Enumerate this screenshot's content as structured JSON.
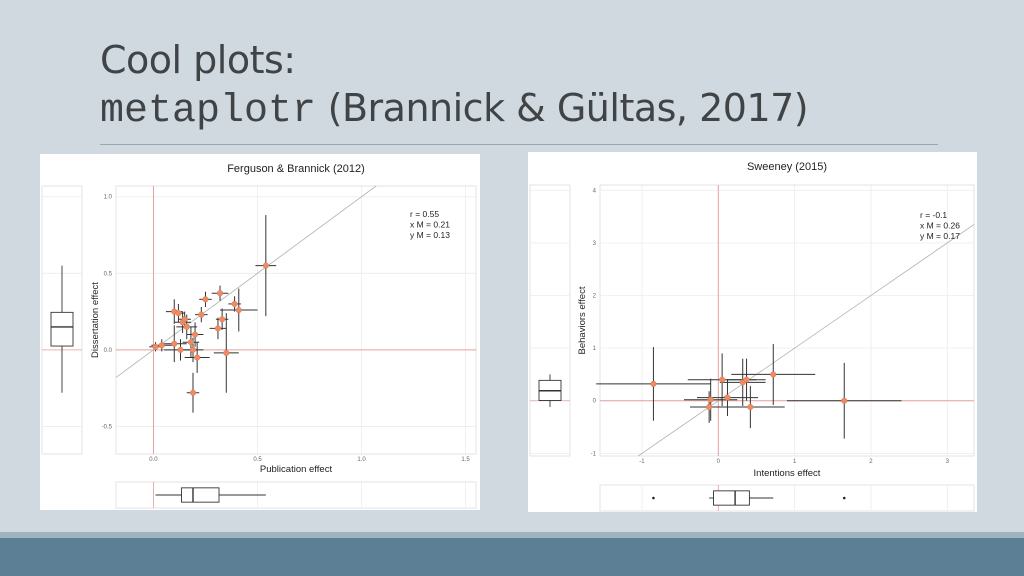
{
  "slide": {
    "title_line1": "Cool plots:",
    "title_code": "metaplotr",
    "title_rest": "(Brannick & Gültas, 2017)"
  },
  "colors": {
    "point": "#ef8a62",
    "refline": "#e8a0a0",
    "diag": "#b8b8b8",
    "grid": "#ececec",
    "errbar": "#333333"
  },
  "chart_data": [
    {
      "type": "scatter",
      "title": "Ferguson & Brannick (2012)",
      "xlabel": "Publication effect",
      "ylabel": "Dissertation effect",
      "xlim": [
        -0.18,
        1.55
      ],
      "ylim": [
        -0.68,
        1.07
      ],
      "xticks": [
        0.0,
        0.5,
        1.0,
        1.5
      ],
      "xtick_labels": [
        "0.0",
        "0.5",
        "1.0",
        "1.5"
      ],
      "yticks": [
        -0.5,
        0.0,
        0.5,
        1.0
      ],
      "ytick_labels": [
        "-0.5",
        "0.0",
        "0.5",
        "1.0"
      ],
      "annotation": [
        "r = 0.55",
        "x M = 0.21",
        "y M = 0.13"
      ],
      "points": [
        {
          "x": 0.01,
          "y": 0.02,
          "xerr": 0.03,
          "yerr": 0.03
        },
        {
          "x": 0.04,
          "y": 0.03,
          "xerr": 0.05,
          "yerr": 0.04
        },
        {
          "x": 0.1,
          "y": 0.25,
          "xerr": 0.04,
          "yerr": 0.08
        },
        {
          "x": 0.12,
          "y": 0.24,
          "xerr": 0.03,
          "yerr": 0.06
        },
        {
          "x": 0.14,
          "y": 0.18,
          "xerr": 0.04,
          "yerr": 0.07
        },
        {
          "x": 0.15,
          "y": 0.2,
          "xerr": 0.03,
          "yerr": 0.05
        },
        {
          "x": 0.16,
          "y": 0.15,
          "xerr": 0.05,
          "yerr": 0.08
        },
        {
          "x": 0.1,
          "y": 0.04,
          "xerr": 0.06,
          "yerr": 0.12
        },
        {
          "x": 0.13,
          "y": 0.0,
          "xerr": 0.08,
          "yerr": 0.07
        },
        {
          "x": 0.18,
          "y": 0.05,
          "xerr": 0.04,
          "yerr": 0.1
        },
        {
          "x": 0.19,
          "y": 0.0,
          "xerr": 0.05,
          "yerr": 0.08
        },
        {
          "x": 0.2,
          "y": 0.1,
          "xerr": 0.04,
          "yerr": 0.08
        },
        {
          "x": 0.21,
          "y": -0.05,
          "xerr": 0.06,
          "yerr": 0.1
        },
        {
          "x": 0.19,
          "y": -0.28,
          "xerr": 0.03,
          "yerr": 0.13
        },
        {
          "x": 0.23,
          "y": 0.23,
          "xerr": 0.03,
          "yerr": 0.05
        },
        {
          "x": 0.25,
          "y": 0.33,
          "xerr": 0.03,
          "yerr": 0.05
        },
        {
          "x": 0.32,
          "y": 0.37,
          "xerr": 0.04,
          "yerr": 0.05
        },
        {
          "x": 0.31,
          "y": 0.14,
          "xerr": 0.04,
          "yerr": 0.07
        },
        {
          "x": 0.33,
          "y": 0.2,
          "xerr": 0.03,
          "yerr": 0.07
        },
        {
          "x": 0.35,
          "y": -0.02,
          "xerr": 0.06,
          "yerr": 0.26
        },
        {
          "x": 0.39,
          "y": 0.3,
          "xerr": 0.03,
          "yerr": 0.05
        },
        {
          "x": 0.41,
          "y": 0.26,
          "xerr": 0.09,
          "yerr": 0.14
        },
        {
          "x": 0.54,
          "y": 0.55,
          "xerr": 0.05,
          "yerr": 0.33
        }
      ]
    },
    {
      "type": "scatter",
      "title": "Sweeney (2015)",
      "xlabel": "Intentions effect",
      "ylabel": "Behaviors effect",
      "xlim": [
        -1.55,
        3.35
      ],
      "ylim": [
        -1.05,
        4.1
      ],
      "xticks": [
        -1,
        0,
        1,
        2,
        3
      ],
      "xtick_labels": [
        "-1",
        "0",
        "1",
        "2",
        "3"
      ],
      "yticks": [
        -1,
        0,
        1,
        2,
        3,
        4
      ],
      "ytick_labels": [
        "-1",
        "0",
        "1",
        "2",
        "3",
        "4"
      ],
      "annotation": [
        "r = -0.1",
        "x M = 0.26",
        "y M = 0.17"
      ],
      "points": [
        {
          "x": -0.85,
          "y": 0.32,
          "xerr": 0.75,
          "yerr": 0.7
        },
        {
          "x": 0.05,
          "y": 0.4,
          "xerr": 0.45,
          "yerr": 0.5
        },
        {
          "x": 0.32,
          "y": 0.35,
          "xerr": 0.3,
          "yerr": 0.45
        },
        {
          "x": 0.37,
          "y": 0.4,
          "xerr": 0.25,
          "yerr": 0.4
        },
        {
          "x": 0.72,
          "y": 0.5,
          "xerr": 0.55,
          "yerr": 0.58
        },
        {
          "x": 0.12,
          "y": 0.06,
          "xerr": 0.4,
          "yerr": 0.35
        },
        {
          "x": -0.1,
          "y": 0.02,
          "xerr": 0.35,
          "yerr": 0.4
        },
        {
          "x": -0.12,
          "y": -0.12,
          "xerr": 0.25,
          "yerr": 0.3
        },
        {
          "x": 0.42,
          "y": -0.12,
          "xerr": 0.45,
          "yerr": 0.4
        },
        {
          "x": 1.65,
          "y": 0.0,
          "xerr": 0.75,
          "yerr": 0.72
        }
      ]
    }
  ]
}
